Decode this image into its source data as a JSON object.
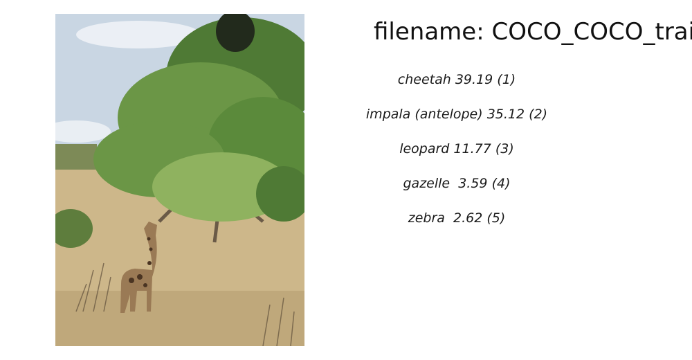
{
  "header": {
    "label": "filename:",
    "filename": "COCO_COCO_train"
  },
  "image": {
    "subject": "giraffe-under-acacia-tree",
    "colors": {
      "sky": "#c9d6e3",
      "cloud": "#eef2f6",
      "foliage_dark": "#4f7a35",
      "foliage_mid": "#6b9646",
      "foliage_light": "#8fb25f",
      "grass": "#cdb78a",
      "grass_dark": "#a58f62",
      "trunk": "#6a5a47",
      "giraffe": "#9a7a55",
      "giraffe_spot": "#4a3422"
    }
  },
  "predictions": [
    {
      "label": "cheetah",
      "score": "39.19",
      "rank": "(1)"
    },
    {
      "label": "impala (antelope)",
      "score": "35.12",
      "rank": "(2)"
    },
    {
      "label": "leopard",
      "score": "11.77",
      "rank": "(3)"
    },
    {
      "label": "gazelle",
      "score": " 3.59",
      "rank": "(4)"
    },
    {
      "label": "zebra",
      "score": " 2.62",
      "rank": "(5)"
    }
  ]
}
